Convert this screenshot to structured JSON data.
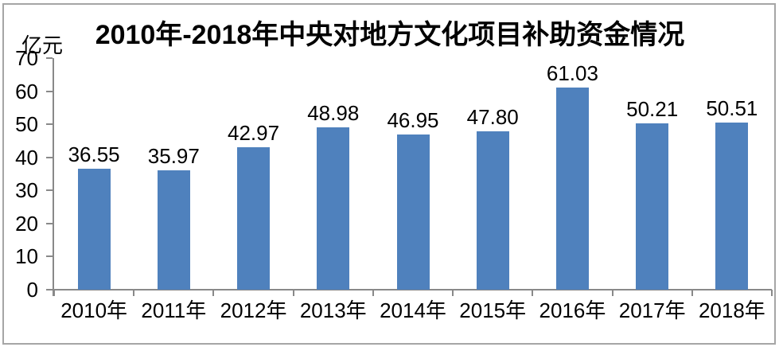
{
  "chart_data": {
    "type": "bar",
    "title": "2010年-2018年中央对地方文化项目补助资金情况",
    "ylabel": "亿元",
    "xlabel": "",
    "categories": [
      "2010年",
      "2011年",
      "2012年",
      "2013年",
      "2014年",
      "2015年",
      "2016年",
      "2017年",
      "2018年"
    ],
    "values": [
      36.55,
      35.97,
      42.97,
      48.98,
      46.95,
      47.8,
      61.03,
      50.21,
      50.51
    ],
    "values_display": [
      "36.55",
      "35.97",
      "42.97",
      "48.98",
      "46.95",
      "47.80",
      "61.03",
      "50.21",
      "50.51"
    ],
    "ylim": [
      0,
      70
    ],
    "yticks": [
      0,
      10,
      20,
      30,
      40,
      50,
      60,
      70
    ],
    "grid": false,
    "legend": "none",
    "colors": {
      "bar": "#4F81BD",
      "axis": "#898989",
      "frame": "#A6A6A6",
      "text": "#000000"
    }
  }
}
